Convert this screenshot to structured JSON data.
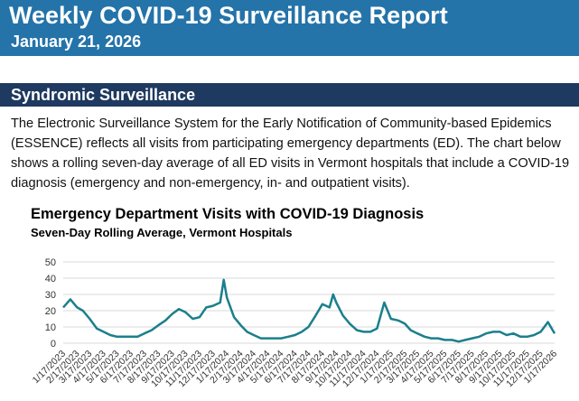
{
  "header": {
    "title": "Weekly COVID-19 Surveillance Report",
    "date": "January 21, 2026"
  },
  "section": {
    "title": "Syndromic Surveillance",
    "paragraph": "The Electronic Surveillance System for the Early Notification of Community-based Epidemics (ESSENCE) reflects all visits from participating emergency departments (ED). The chart below shows a rolling seven-day average of all ED visits in Vermont hospitals that include a COVID-19 diagnosis (emergency and non-emergency, in- and outpatient visits)."
  },
  "chart_data": {
    "type": "line",
    "title": "Emergency Department Visits with COVID-19 Diagnosis",
    "subtitle": "Seven-Day Rolling Average, Vermont Hospitals",
    "color": "#1b7f8c",
    "grid": true,
    "ylim": [
      0,
      50
    ],
    "yticks": [
      0,
      10,
      20,
      30,
      40,
      50
    ],
    "xlim": [
      "1/17/2023",
      "1/17/2026"
    ],
    "xticks": [
      "1/17/2023",
      "2/17/2023",
      "3/17/2023",
      "4/17/2023",
      "5/17/2023",
      "6/17/2023",
      "7/17/2023",
      "8/17/2023",
      "9/17/2023",
      "10/17/2023",
      "11/17/2023",
      "12/17/2023",
      "1/17/2024",
      "2/17/2024",
      "3/17/2024",
      "4/17/2024",
      "5/17/2024",
      "6/17/2024",
      "7/17/2024",
      "8/17/2024",
      "9/17/2024",
      "10/17/2024",
      "11/17/2024",
      "12/17/2024",
      "1/17/2025",
      "2/17/2025",
      "3/17/2025",
      "4/17/2025",
      "5/17/2025",
      "6/17/2025",
      "7/17/2025",
      "8/17/2025",
      "9/17/2025",
      "10/17/2025",
      "11/17/2025",
      "12/17/2025",
      "1/17/2026"
    ],
    "x": [
      "1/17/2023",
      "2/2/2023",
      "2/17/2023",
      "3/2/2023",
      "3/17/2023",
      "4/2/2023",
      "4/17/2023",
      "5/2/2023",
      "5/17/2023",
      "6/2/2023",
      "6/17/2023",
      "7/2/2023",
      "7/17/2023",
      "8/2/2023",
      "8/17/2023",
      "9/2/2023",
      "9/17/2023",
      "10/2/2023",
      "10/17/2023",
      "11/2/2023",
      "11/17/2023",
      "12/2/2023",
      "12/17/2023",
      "1/2/2024",
      "1/10/2024",
      "1/17/2024",
      "2/2/2024",
      "2/17/2024",
      "3/2/2024",
      "3/17/2024",
      "4/2/2024",
      "4/17/2024",
      "5/2/2024",
      "5/17/2024",
      "6/2/2024",
      "6/17/2024",
      "7/2/2024",
      "7/17/2024",
      "8/2/2024",
      "8/17/2024",
      "9/2/2024",
      "9/10/2024",
      "9/17/2024",
      "10/2/2024",
      "10/17/2024",
      "11/2/2024",
      "11/17/2024",
      "12/2/2024",
      "12/17/2024",
      "1/2/2025",
      "1/17/2025",
      "2/2/2025",
      "2/17/2025",
      "3/2/2025",
      "3/17/2025",
      "4/2/2025",
      "4/17/2025",
      "5/2/2025",
      "5/17/2025",
      "6/2/2025",
      "6/17/2025",
      "7/2/2025",
      "7/17/2025",
      "8/2/2025",
      "8/17/2025",
      "9/2/2025",
      "9/17/2025",
      "10/2/2025",
      "10/17/2025",
      "11/2/2025",
      "11/17/2025",
      "12/2/2025",
      "12/17/2025",
      "1/2/2026",
      "1/17/2026"
    ],
    "values": [
      22,
      27,
      22,
      20,
      15,
      9,
      7,
      5,
      4,
      4,
      4,
      4,
      6,
      8,
      11,
      14,
      18,
      21,
      19,
      15,
      16,
      22,
      23,
      25,
      39,
      28,
      16,
      11,
      7,
      5,
      3,
      3,
      3,
      3,
      4,
      5,
      7,
      10,
      17,
      24,
      22,
      30,
      25,
      17,
      12,
      8,
      7,
      7,
      9,
      25,
      15,
      14,
      12,
      8,
      6,
      4,
      3,
      3,
      2,
      2,
      1,
      2,
      3,
      4,
      6,
      7,
      7,
      5,
      6,
      4,
      4,
      5,
      7,
      13,
      6
    ]
  }
}
